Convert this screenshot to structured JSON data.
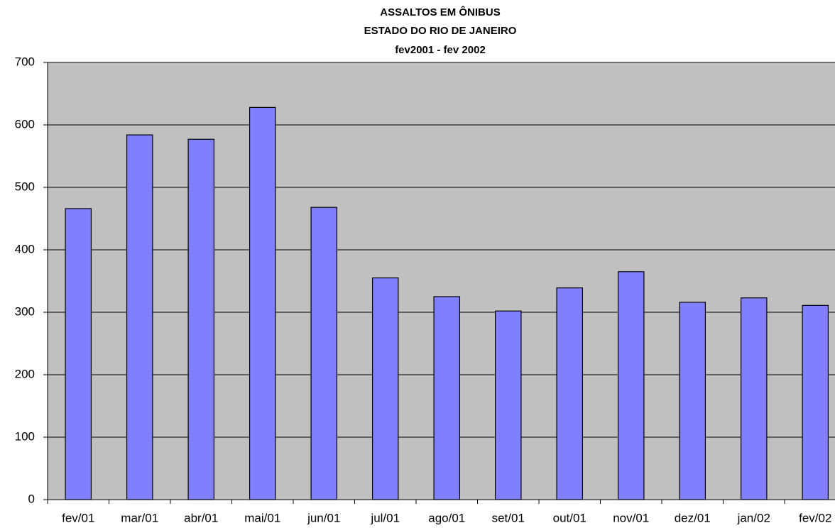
{
  "chart_data": {
    "type": "bar",
    "title": [
      "ASSALTOS EM ÔNIBUS",
      "ESTADO DO RIO DE JANEIRO",
      "fev2001 - fev 2002"
    ],
    "categories": [
      "fev/01",
      "mar/01",
      "abr/01",
      "mai/01",
      "jun/01",
      "jul/01",
      "ago/01",
      "set/01",
      "out/01",
      "nov/01",
      "dez/01",
      "jan/02",
      "fev/02"
    ],
    "values": [
      466,
      584,
      577,
      628,
      468,
      355,
      325,
      302,
      339,
      365,
      316,
      323,
      311
    ],
    "color": "#8080ff",
    "ylim": [
      0,
      700
    ],
    "yticks": [
      0,
      100,
      200,
      300,
      400,
      500,
      600,
      700
    ],
    "grid": true
  }
}
